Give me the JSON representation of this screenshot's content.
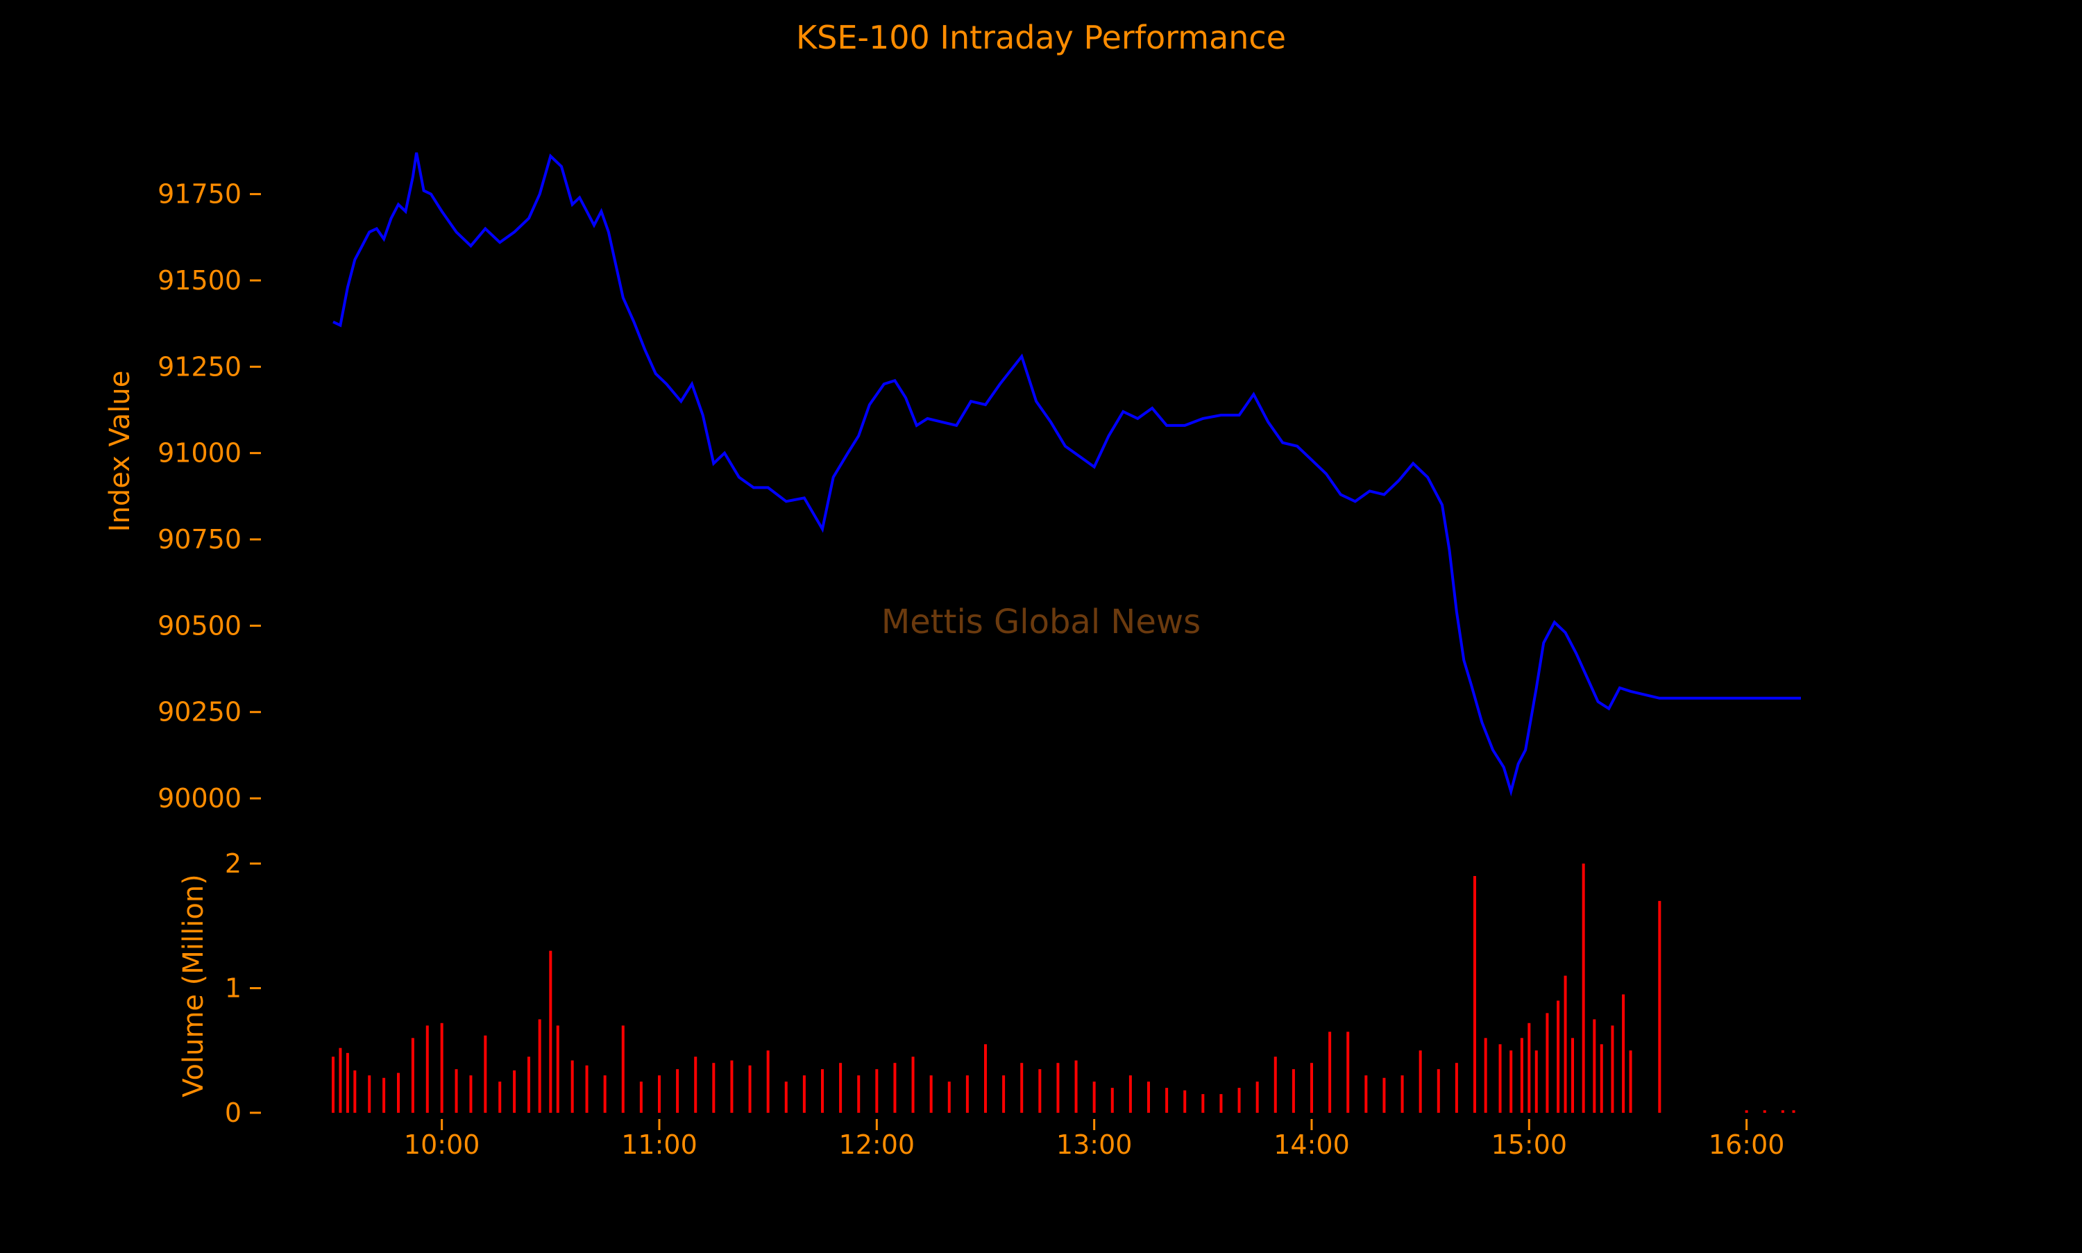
{
  "colors": {
    "background": "#000000",
    "text": "#ff8c00",
    "price_line": "#0000ff",
    "volume_bars": "#ff0000",
    "watermark": "#6b3a0e"
  },
  "chart_data": {
    "type": "line",
    "title": "KSE-100 Intraday Performance",
    "watermark": "Mettis Global News",
    "grid": false,
    "x_axis": {
      "label": "",
      "unit": "time of day",
      "range": [
        "09:30",
        "16:15"
      ],
      "tick_labels": [
        "10:00",
        "11:00",
        "12:00",
        "13:00",
        "14:00",
        "15:00",
        "16:00"
      ]
    },
    "panels": [
      {
        "name": "index",
        "ylabel": "Index Value",
        "ylim": [
          89970,
          91900
        ],
        "tick_values": [
          90000,
          90250,
          90500,
          90750,
          91000,
          91250,
          91500,
          91750
        ],
        "tick_labels": [
          "90000",
          "90250",
          "90500",
          "90750",
          "91000",
          "91250",
          "91500",
          "91750"
        ],
        "series": [
          {
            "type": "line",
            "points": [
              [
                "09:30",
                91380
              ],
              [
                "09:32",
                91370
              ],
              [
                "09:34",
                91480
              ],
              [
                "09:36",
                91560
              ],
              [
                "09:38",
                91600
              ],
              [
                "09:40",
                91640
              ],
              [
                "09:42",
                91650
              ],
              [
                "09:44",
                91620
              ],
              [
                "09:46",
                91680
              ],
              [
                "09:48",
                91720
              ],
              [
                "09:50",
                91700
              ],
              [
                "09:52",
                91800
              ],
              [
                "09:53",
                91870
              ],
              [
                "09:55",
                91760
              ],
              [
                "09:57",
                91750
              ],
              [
                "10:00",
                91700
              ],
              [
                "10:04",
                91640
              ],
              [
                "10:08",
                91600
              ],
              [
                "10:12",
                91650
              ],
              [
                "10:16",
                91610
              ],
              [
                "10:20",
                91640
              ],
              [
                "10:24",
                91680
              ],
              [
                "10:27",
                91750
              ],
              [
                "10:30",
                91860
              ],
              [
                "10:33",
                91830
              ],
              [
                "10:36",
                91720
              ],
              [
                "10:38",
                91740
              ],
              [
                "10:40",
                91700
              ],
              [
                "10:42",
                91660
              ],
              [
                "10:44",
                91700
              ],
              [
                "10:46",
                91640
              ],
              [
                "10:50",
                91450
              ],
              [
                "10:53",
                91380
              ],
              [
                "10:56",
                91300
              ],
              [
                "10:59",
                91230
              ],
              [
                "11:02",
                91200
              ],
              [
                "11:06",
                91150
              ],
              [
                "11:09",
                91200
              ],
              [
                "11:12",
                91110
              ],
              [
                "11:15",
                90970
              ],
              [
                "11:18",
                91000
              ],
              [
                "11:22",
                90930
              ],
              [
                "11:26",
                90900
              ],
              [
                "11:30",
                90900
              ],
              [
                "11:35",
                90860
              ],
              [
                "11:40",
                90870
              ],
              [
                "11:45",
                90780
              ],
              [
                "11:48",
                90930
              ],
              [
                "11:52",
                91000
              ],
              [
                "11:55",
                91050
              ],
              [
                "11:58",
                91140
              ],
              [
                "12:02",
                91200
              ],
              [
                "12:05",
                91210
              ],
              [
                "12:08",
                91160
              ],
              [
                "12:11",
                91080
              ],
              [
                "12:14",
                91100
              ],
              [
                "12:18",
                91090
              ],
              [
                "12:22",
                91080
              ],
              [
                "12:26",
                91150
              ],
              [
                "12:30",
                91140
              ],
              [
                "12:34",
                91200
              ],
              [
                "12:40",
                91280
              ],
              [
                "12:44",
                91150
              ],
              [
                "12:48",
                91090
              ],
              [
                "12:52",
                91020
              ],
              [
                "12:56",
                90990
              ],
              [
                "13:00",
                90960
              ],
              [
                "13:04",
                91050
              ],
              [
                "13:08",
                91120
              ],
              [
                "13:12",
                91100
              ],
              [
                "13:16",
                91130
              ],
              [
                "13:20",
                91080
              ],
              [
                "13:25",
                91080
              ],
              [
                "13:30",
                91100
              ],
              [
                "13:35",
                91110
              ],
              [
                "13:40",
                91110
              ],
              [
                "13:44",
                91170
              ],
              [
                "13:48",
                91090
              ],
              [
                "13:52",
                91030
              ],
              [
                "13:56",
                91020
              ],
              [
                "14:00",
                90980
              ],
              [
                "14:04",
                90940
              ],
              [
                "14:08",
                90880
              ],
              [
                "14:12",
                90860
              ],
              [
                "14:16",
                90890
              ],
              [
                "14:20",
                90880
              ],
              [
                "14:24",
                90920
              ],
              [
                "14:28",
                90970
              ],
              [
                "14:32",
                90930
              ],
              [
                "14:36",
                90850
              ],
              [
                "14:38",
                90720
              ],
              [
                "14:40",
                90540
              ],
              [
                "14:42",
                90400
              ],
              [
                "14:44",
                90330
              ],
              [
                "14:47",
                90220
              ],
              [
                "14:50",
                90140
              ],
              [
                "14:53",
                90090
              ],
              [
                "14:55",
                90020
              ],
              [
                "14:57",
                90100
              ],
              [
                "14:59",
                90140
              ],
              [
                "15:02",
                90320
              ],
              [
                "15:04",
                90450
              ],
              [
                "15:07",
                90510
              ],
              [
                "15:10",
                90480
              ],
              [
                "15:13",
                90420
              ],
              [
                "15:16",
                90350
              ],
              [
                "15:19",
                90280
              ],
              [
                "15:22",
                90260
              ],
              [
                "15:25",
                90320
              ],
              [
                "15:28",
                90310
              ],
              [
                "15:36",
                90290
              ],
              [
                "16:15",
                90290
              ]
            ]
          }
        ]
      },
      {
        "name": "volume",
        "ylabel": "Volume (Million)",
        "ylim": [
          0,
          2
        ],
        "tick_values": [
          0,
          1,
          2
        ],
        "tick_labels": [
          "0",
          "1",
          "2"
        ],
        "series": [
          {
            "type": "bar",
            "unit": "million shares",
            "bars": [
              [
                "09:30",
                0.45
              ],
              [
                "09:32",
                0.52
              ],
              [
                "09:34",
                0.48
              ],
              [
                "09:36",
                0.34
              ],
              [
                "09:40",
                0.3
              ],
              [
                "09:44",
                0.28
              ],
              [
                "09:48",
                0.32
              ],
              [
                "09:52",
                0.6
              ],
              [
                "09:56",
                0.7
              ],
              [
                "10:00",
                0.72
              ],
              [
                "10:04",
                0.35
              ],
              [
                "10:08",
                0.3
              ],
              [
                "10:12",
                0.62
              ],
              [
                "10:16",
                0.25
              ],
              [
                "10:20",
                0.34
              ],
              [
                "10:24",
                0.45
              ],
              [
                "10:27",
                0.75
              ],
              [
                "10:30",
                1.3
              ],
              [
                "10:32",
                0.7
              ],
              [
                "10:36",
                0.42
              ],
              [
                "10:40",
                0.38
              ],
              [
                "10:45",
                0.3
              ],
              [
                "10:50",
                0.7
              ],
              [
                "10:55",
                0.25
              ],
              [
                "11:00",
                0.3
              ],
              [
                "11:05",
                0.35
              ],
              [
                "11:10",
                0.45
              ],
              [
                "11:15",
                0.4
              ],
              [
                "11:20",
                0.42
              ],
              [
                "11:25",
                0.38
              ],
              [
                "11:30",
                0.5
              ],
              [
                "11:35",
                0.25
              ],
              [
                "11:40",
                0.3
              ],
              [
                "11:45",
                0.35
              ],
              [
                "11:50",
                0.4
              ],
              [
                "11:55",
                0.3
              ],
              [
                "12:00",
                0.35
              ],
              [
                "12:05",
                0.4
              ],
              [
                "12:10",
                0.45
              ],
              [
                "12:15",
                0.3
              ],
              [
                "12:20",
                0.25
              ],
              [
                "12:25",
                0.3
              ],
              [
                "12:30",
                0.55
              ],
              [
                "12:35",
                0.3
              ],
              [
                "12:40",
                0.4
              ],
              [
                "12:45",
                0.35
              ],
              [
                "12:50",
                0.4
              ],
              [
                "12:55",
                0.42
              ],
              [
                "13:00",
                0.25
              ],
              [
                "13:05",
                0.2
              ],
              [
                "13:10",
                0.3
              ],
              [
                "13:15",
                0.25
              ],
              [
                "13:20",
                0.2
              ],
              [
                "13:25",
                0.18
              ],
              [
                "13:30",
                0.15
              ],
              [
                "13:35",
                0.15
              ],
              [
                "13:40",
                0.2
              ],
              [
                "13:45",
                0.25
              ],
              [
                "13:50",
                0.45
              ],
              [
                "13:55",
                0.35
              ],
              [
                "14:00",
                0.4
              ],
              [
                "14:05",
                0.65
              ],
              [
                "14:10",
                0.65
              ],
              [
                "14:15",
                0.3
              ],
              [
                "14:20",
                0.28
              ],
              [
                "14:25",
                0.3
              ],
              [
                "14:30",
                0.5
              ],
              [
                "14:35",
                0.35
              ],
              [
                "14:40",
                0.4
              ],
              [
                "14:45",
                1.9
              ],
              [
                "14:48",
                0.6
              ],
              [
                "14:52",
                0.55
              ],
              [
                "14:55",
                0.5
              ],
              [
                "14:58",
                0.6
              ],
              [
                "15:00",
                0.72
              ],
              [
                "15:02",
                0.5
              ],
              [
                "15:05",
                0.8
              ],
              [
                "15:08",
                0.9
              ],
              [
                "15:10",
                1.1
              ],
              [
                "15:12",
                0.6
              ],
              [
                "15:15",
                2.0
              ],
              [
                "15:18",
                0.75
              ],
              [
                "15:20",
                0.55
              ],
              [
                "15:23",
                0.7
              ],
              [
                "15:26",
                0.95
              ],
              [
                "15:28",
                0.5
              ],
              [
                "15:36",
                1.7
              ],
              [
                "16:00",
                0.02
              ],
              [
                "16:05",
                0.02
              ],
              [
                "16:10",
                0.02
              ],
              [
                "16:13",
                0.02
              ]
            ]
          }
        ]
      }
    ]
  }
}
